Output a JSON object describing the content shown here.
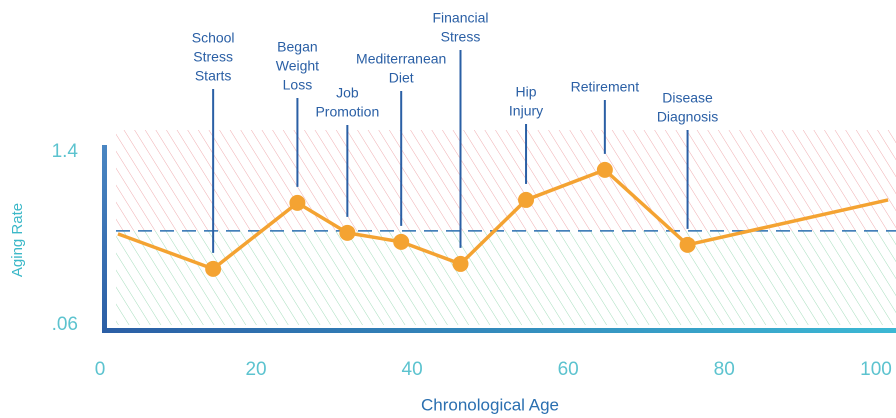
{
  "chart_data": {
    "type": "line",
    "x_label": "Chronological Age",
    "y_label": "Aging Rate",
    "x": [
      2.3,
      14.5,
      25.3,
      31.7,
      38.6,
      46.2,
      54.6,
      64.7,
      75.3,
      101
    ],
    "series": [
      {
        "color": "#f4a332",
        "values": [
          0.765,
          0.494,
          1.005,
          0.773,
          0.703,
          0.532,
          1.028,
          1.261,
          0.68,
          1.028
        ]
      }
    ],
    "xlim": [
      0,
      101.5
    ],
    "ylim": [
      0.02,
      1.57
    ],
    "xticks": [
      0,
      20,
      40,
      60,
      80,
      100
    ],
    "yticks": [
      {
        "value": 0.06,
        "label": ".06"
      },
      1.4
    ],
    "threshold": 0.788,
    "annotations": [
      {
        "text": [
          "School",
          "Stress",
          "Starts"
        ],
        "point": 1
      },
      {
        "text": [
          "Began",
          "Weight",
          "Loss"
        ],
        "point": 2
      },
      {
        "text": [
          "Job",
          "Promotion"
        ],
        "point": 3
      },
      {
        "text": [
          "Mediterranean",
          "Diet"
        ],
        "point": 4
      },
      {
        "text": [
          "Financial",
          "Stress"
        ],
        "point": 5
      },
      {
        "text": [
          "Hip",
          "Injury"
        ],
        "point": 6
      },
      {
        "text": [
          "Retirement"
        ],
        "point": 7
      },
      {
        "text": [
          "Disease",
          "Diagnosis"
        ],
        "point": 8
      }
    ]
  }
}
